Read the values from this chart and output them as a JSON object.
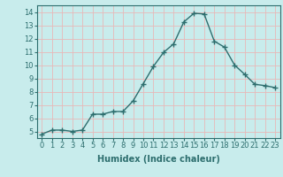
{
  "x": [
    0,
    1,
    2,
    3,
    4,
    5,
    6,
    7,
    8,
    9,
    10,
    11,
    12,
    13,
    14,
    15,
    16,
    17,
    18,
    19,
    20,
    21,
    22,
    23
  ],
  "y": [
    4.8,
    5.1,
    5.1,
    5.0,
    5.1,
    6.3,
    6.3,
    6.5,
    6.5,
    7.3,
    8.6,
    9.9,
    10.95,
    11.6,
    13.25,
    13.9,
    13.85,
    11.8,
    11.35,
    10.0,
    9.3,
    8.55,
    8.45,
    8.3
  ],
  "line_color": "#2d6e6e",
  "marker": "+",
  "markersize": 4,
  "linewidth": 1.0,
  "bg_color": "#c8ecec",
  "grid_color": "#e8b8b8",
  "xlabel": "Humidex (Indice chaleur)",
  "xlabel_fontsize": 7,
  "tick_fontsize": 6,
  "xlim": [
    -0.5,
    23.5
  ],
  "ylim": [
    4.5,
    14.5
  ],
  "yticks": [
    5,
    6,
    7,
    8,
    9,
    10,
    11,
    12,
    13,
    14
  ],
  "xticks": [
    0,
    1,
    2,
    3,
    4,
    5,
    6,
    7,
    8,
    9,
    10,
    11,
    12,
    13,
    14,
    15,
    16,
    17,
    18,
    19,
    20,
    21,
    22,
    23
  ]
}
